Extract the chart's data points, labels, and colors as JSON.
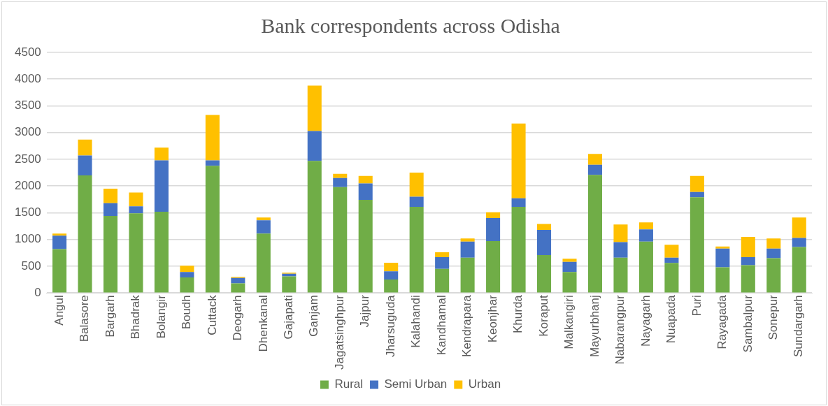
{
  "chart_data": {
    "type": "bar",
    "title": "Bank correspondents across Odisha",
    "stacked": true,
    "categories": [
      "Angul",
      "Balasore",
      "Bargarh",
      "Bhadrak",
      "Bolangir",
      "Boudh",
      "Cuttack",
      "Deogarh",
      "Dhenkanal",
      "Gajapati",
      "Ganjam",
      "Jagatsinghpur",
      "Jajpur",
      "Jharsuguda",
      "Kalahandi",
      "Kandhamal",
      "Kendrapara",
      "Keonjhar",
      "Khurda",
      "Koraput",
      "Malkangiri",
      "Mayurbhanj",
      "Nabarangpur",
      "Nayagarh",
      "Nuapada",
      "Puri",
      "Rayagada",
      "Sambalpur",
      "Sonepur",
      "Sundargarh"
    ],
    "series": [
      {
        "name": "Rural",
        "color": "#70ad47",
        "values": [
          820,
          2200,
          1440,
          1490,
          1520,
          290,
          2380,
          180,
          1110,
          310,
          2470,
          1980,
          1740,
          250,
          1610,
          450,
          660,
          970,
          1610,
          710,
          390,
          2210,
          660,
          960,
          560,
          1790,
          480,
          520,
          650,
          860
        ]
      },
      {
        "name": "Semi Urban",
        "color": "#4472c4",
        "values": [
          250,
          370,
          240,
          130,
          960,
          100,
          100,
          100,
          250,
          50,
          560,
          170,
          310,
          155,
          190,
          220,
          300,
          430,
          160,
          470,
          190,
          190,
          290,
          230,
          100,
          100,
          350,
          150,
          180,
          170
        ]
      },
      {
        "name": "Urban",
        "color": "#ffc000",
        "values": [
          40,
          300,
          270,
          260,
          240,
          120,
          850,
          20,
          50,
          20,
          850,
          80,
          140,
          160,
          450,
          90,
          60,
          110,
          1400,
          110,
          60,
          200,
          330,
          130,
          240,
          300,
          40,
          380,
          190,
          380
        ]
      }
    ],
    "ylim": [
      0,
      4500
    ],
    "yticks": [
      0,
      500,
      1000,
      1500,
      2000,
      2500,
      3000,
      3500,
      4000,
      4500
    ],
    "grid": "y",
    "legend": "bottom"
  }
}
